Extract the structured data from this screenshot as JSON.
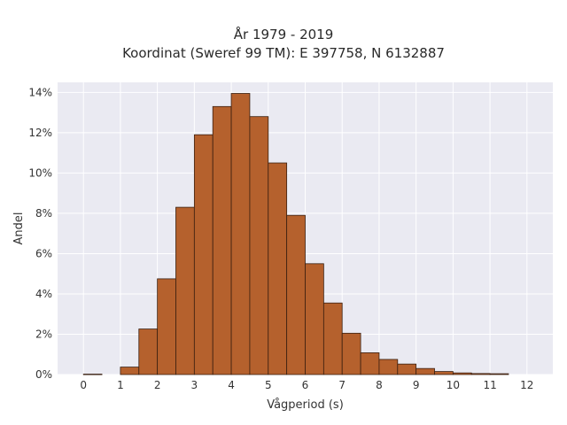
{
  "chart_data": {
    "type": "bar",
    "title": "År 1979 - 2019",
    "subtitle": "Koordinat (Sweref 99 TM): E 397758, N 6132887",
    "xlabel": "Vågperiod (s)",
    "ylabel": "Andel",
    "xlim": [
      -0.7,
      12.7
    ],
    "ylim": [
      0,
      0.145
    ],
    "x_ticks": [
      0,
      1,
      2,
      3,
      4,
      5,
      6,
      7,
      8,
      9,
      10,
      11,
      12
    ],
    "y_ticks": [
      0,
      0.02,
      0.04,
      0.06,
      0.08,
      0.1,
      0.12,
      0.14
    ],
    "y_tick_labels": [
      "0%",
      "2%",
      "4%",
      "6%",
      "8%",
      "10%",
      "12%",
      "14%"
    ],
    "bin_width": 0.5,
    "bin_starts": [
      0,
      0.5,
      1,
      1.5,
      2,
      2.5,
      3,
      3.5,
      4,
      4.5,
      5,
      5.5,
      6,
      6.5,
      7,
      7.5,
      8,
      8.5,
      9,
      9.5,
      10,
      10.5,
      11,
      11.5
    ],
    "values": [
      0.0002,
      0,
      0.0037,
      0.0226,
      0.0475,
      0.083,
      0.119,
      0.133,
      0.1395,
      0.128,
      0.105,
      0.079,
      0.055,
      0.0355,
      0.0205,
      0.0108,
      0.0075,
      0.0052,
      0.003,
      0.0015,
      0.0008,
      0.0005,
      0.0004,
      0
    ],
    "bar_color": "#b5612d",
    "bar_edge_color": "#3a1f10",
    "background": "#eaeaf2",
    "grid": true
  }
}
